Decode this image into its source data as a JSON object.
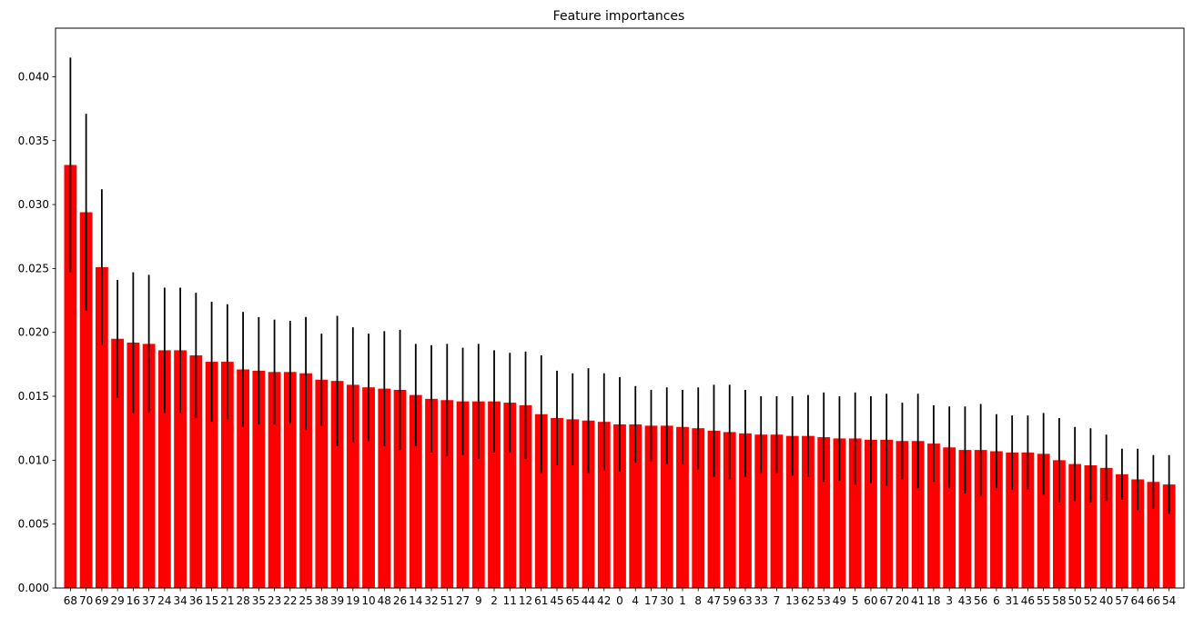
{
  "chart_data": {
    "type": "bar",
    "title": "Feature importances",
    "xlabel": "",
    "ylabel": "",
    "ylim": [
      0,
      0.0438
    ],
    "yticks": [
      0.0,
      0.005,
      0.01,
      0.015,
      0.02,
      0.025,
      0.03,
      0.035,
      0.04
    ],
    "ytick_labels": [
      "0.000",
      "0.005",
      "0.010",
      "0.015",
      "0.020",
      "0.025",
      "0.030",
      "0.035",
      "0.040"
    ],
    "grid": false,
    "bar_color": "#ff0000",
    "error_bar_color": "#000000",
    "categories": [
      "68",
      "70",
      "69",
      "29",
      "16",
      "37",
      "24",
      "34",
      "36",
      "15",
      "21",
      "28",
      "35",
      "23",
      "22",
      "25",
      "38",
      "39",
      "19",
      "10",
      "48",
      "26",
      "14",
      "32",
      "51",
      "27",
      "9",
      "2",
      "11",
      "12",
      "61",
      "45",
      "65",
      "44",
      "42",
      "0",
      "4",
      "17",
      "30",
      "1",
      "8",
      "47",
      "59",
      "63",
      "33",
      "7",
      "13",
      "62",
      "53",
      "49",
      "5",
      "60",
      "67",
      "20",
      "41",
      "18",
      "3",
      "43",
      "56",
      "6",
      "31",
      "46",
      "55",
      "58",
      "50",
      "52",
      "40",
      "57",
      "64",
      "66",
      "54"
    ],
    "values": [
      0.0331,
      0.0294,
      0.0251,
      0.0195,
      0.0192,
      0.0191,
      0.0186,
      0.0186,
      0.0182,
      0.0177,
      0.0177,
      0.0171,
      0.017,
      0.0169,
      0.0169,
      0.0168,
      0.0163,
      0.0162,
      0.0159,
      0.0157,
      0.0156,
      0.0155,
      0.0151,
      0.0148,
      0.0147,
      0.0146,
      0.0146,
      0.0146,
      0.0145,
      0.0143,
      0.0136,
      0.0133,
      0.0132,
      0.0131,
      0.013,
      0.0128,
      0.0128,
      0.0127,
      0.0127,
      0.0126,
      0.0125,
      0.0123,
      0.0122,
      0.0121,
      0.012,
      0.012,
      0.0119,
      0.0119,
      0.0118,
      0.0117,
      0.0117,
      0.0116,
      0.0116,
      0.0115,
      0.0115,
      0.0113,
      0.011,
      0.0108,
      0.0108,
      0.0107,
      0.0106,
      0.0106,
      0.0105,
      0.01,
      0.0097,
      0.0096,
      0.0094,
      0.0089,
      0.0085,
      0.0083,
      0.0081
    ],
    "errors": [
      0.0084,
      0.0077,
      0.0061,
      0.0046,
      0.0055,
      0.0054,
      0.0049,
      0.0049,
      0.0049,
      0.0047,
      0.0045,
      0.0045,
      0.0042,
      0.0041,
      0.004,
      0.0044,
      0.0036,
      0.0051,
      0.0045,
      0.0042,
      0.0045,
      0.0047,
      0.004,
      0.0042,
      0.0044,
      0.0042,
      0.0045,
      0.004,
      0.0039,
      0.0042,
      0.0046,
      0.0037,
      0.0036,
      0.0041,
      0.0038,
      0.0037,
      0.003,
      0.0028,
      0.003,
      0.0029,
      0.0032,
      0.0036,
      0.0037,
      0.0034,
      0.003,
      0.003,
      0.0031,
      0.0032,
      0.0035,
      0.0033,
      0.0036,
      0.0034,
      0.0036,
      0.003,
      0.0037,
      0.003,
      0.0032,
      0.0034,
      0.0036,
      0.0029,
      0.0029,
      0.0029,
      0.0032,
      0.0033,
      0.0029,
      0.0029,
      0.0026,
      0.002,
      0.0024,
      0.0021,
      0.0023
    ]
  }
}
